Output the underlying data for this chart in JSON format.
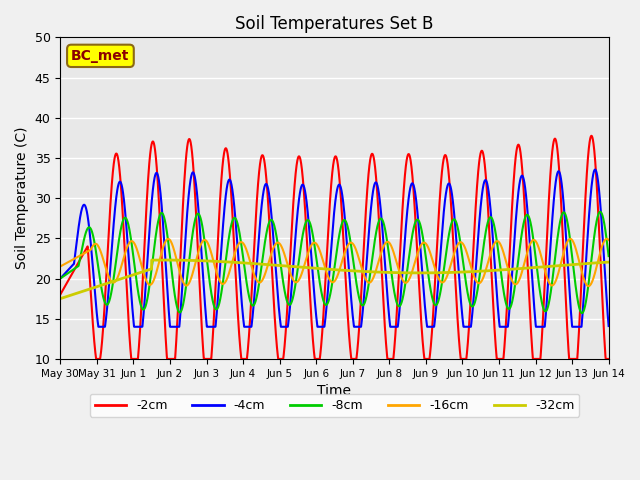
{
  "title": "Soil Temperatures Set B",
  "xlabel": "Time",
  "ylabel": "Soil Temperature (C)",
  "ylim": [
    10,
    50
  ],
  "annotation": "BC_met",
  "annotation_color": "#8B0000",
  "annotation_bg": "#FFFF00",
  "bg_color": "#E8E8E8",
  "xtick_labels": [
    "May 30",
    "May 31",
    "Jun 1",
    "Jun 2",
    "Jun 3",
    "Jun 4",
    "Jun 5",
    "Jun 6",
    "Jun 7",
    "Jun 8",
    "Jun 9",
    "Jun 10",
    "Jun 11",
    "Jun 12",
    "Jun 13",
    "Jun 14"
  ],
  "xtick_positions": [
    0,
    1,
    2,
    3,
    4,
    5,
    6,
    7,
    8,
    9,
    10,
    11,
    12,
    13,
    14,
    15
  ],
  "ytick_positions": [
    10,
    15,
    20,
    25,
    30,
    35,
    40,
    45,
    50
  ],
  "grid_color": "#FFFFFF",
  "legend_colors": [
    "#FF0000",
    "#0000FF",
    "#00CC00",
    "#FFA500",
    "#CCCC00"
  ],
  "legend_labels": [
    "-2cm",
    "-4cm",
    "-8cm",
    "-16cm",
    "-32cm"
  ]
}
